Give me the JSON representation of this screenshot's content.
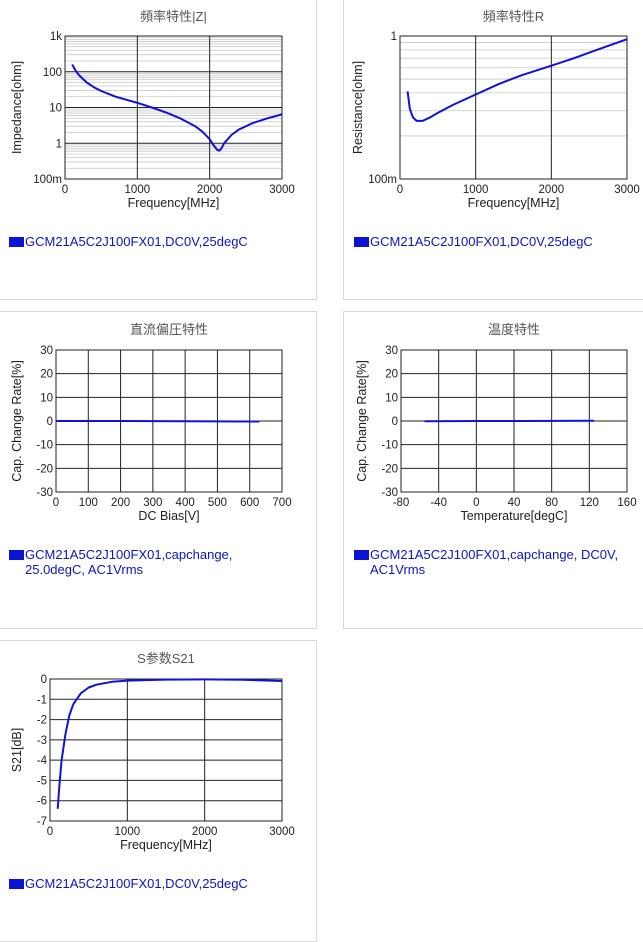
{
  "chart_data": [
    {
      "type": "line",
      "title": "頻率特性|Z|",
      "xlabel": "Frequency[MHz]",
      "ylabel": "Impedance[ohm]",
      "xlim": [
        0,
        3000
      ],
      "ylim": [
        0.1,
        1000
      ],
      "yscale": "log",
      "xticks": [
        0,
        1000,
        2000,
        3000
      ],
      "xtick_labels": [
        "0",
        "1000",
        "2000",
        "3000"
      ],
      "yticks": [
        0.1,
        1,
        10,
        100,
        1000
      ],
      "ytick_labels": [
        "100m",
        "1",
        "10",
        "100",
        "1k"
      ],
      "grid": true,
      "minor_grid": true,
      "series": [
        {
          "name": "GCM21A5C2J100FX01,DC0V,25degC",
          "color": "#1010e0",
          "x": [
            100,
            150,
            200,
            300,
            400,
            500,
            700,
            1000,
            1200,
            1400,
            1600,
            1800,
            1900,
            2000,
            2050,
            2100,
            2130,
            2160,
            2200,
            2300,
            2400,
            2600,
            2800,
            3000
          ],
          "y": [
            160,
            105,
            78,
            50,
            37,
            29,
            20,
            13.5,
            10,
            7.2,
            4.9,
            3.0,
            2.1,
            1.3,
            0.9,
            0.67,
            0.62,
            0.7,
            1.0,
            1.7,
            2.4,
            3.7,
            5.0,
            6.4
          ]
        }
      ],
      "legend": "GCM21A5C2J100FX01,DC0V,25degC"
    },
    {
      "type": "line",
      "title": "頻率特性R",
      "xlabel": "Frequency[MHz]",
      "ylabel": "Resistance[ohm]",
      "xlim": [
        0,
        3000
      ],
      "ylim": [
        0.1,
        1
      ],
      "yscale": "log",
      "xticks": [
        0,
        1000,
        2000,
        3000
      ],
      "xtick_labels": [
        "0",
        "1000",
        "2000",
        "3000"
      ],
      "yticks": [
        0.1,
        1
      ],
      "ytick_labels": [
        "100m",
        "1"
      ],
      "grid": true,
      "minor_grid": true,
      "series": [
        {
          "name": "GCM21A5C2J100FX01,DC0V,25degC",
          "color": "#1010e0",
          "x": [
            100,
            130,
            170,
            220,
            300,
            400,
            500,
            700,
            1000,
            1300,
            1600,
            2000,
            2300,
            2600,
            3000
          ],
          "y": [
            0.41,
            0.31,
            0.27,
            0.255,
            0.255,
            0.27,
            0.29,
            0.33,
            0.39,
            0.46,
            0.53,
            0.62,
            0.7,
            0.8,
            0.95
          ]
        }
      ],
      "legend": "GCM21A5C2J100FX01,DC0V,25degC"
    },
    {
      "type": "line",
      "title": "直流偏圧特性",
      "xlabel": "DC Bias[V]",
      "ylabel": "Cap. Change Rate[%]",
      "xlim": [
        0,
        700
      ],
      "ylim": [
        -30,
        30
      ],
      "xticks": [
        0,
        100,
        200,
        300,
        400,
        500,
        600,
        700
      ],
      "xtick_labels": [
        "0",
        "100",
        "200",
        "300",
        "400",
        "500",
        "600",
        "700"
      ],
      "yticks": [
        -30,
        -20,
        -10,
        0,
        10,
        20,
        30
      ],
      "ytick_labels": [
        "-30",
        "-20",
        "-10",
        "0",
        "10",
        "20",
        "30"
      ],
      "grid": true,
      "series": [
        {
          "name": "GCM21A5C2J100FX01,capchange,\n25.0degC, AC1Vrms",
          "color": "#1010e0",
          "x": [
            0,
            100,
            200,
            300,
            400,
            500,
            600,
            630
          ],
          "y": [
            0,
            0,
            0,
            -0.05,
            -0.1,
            -0.15,
            -0.2,
            -0.2
          ]
        }
      ],
      "legend": "GCM21A5C2J100FX01,capchange,\n25.0degC, AC1Vrms"
    },
    {
      "type": "line",
      "title": "温度特性",
      "xlabel": "Temperature[degC]",
      "ylabel": "Cap. Change Rate[%]",
      "xlim": [
        -80,
        160
      ],
      "ylim": [
        -30,
        30
      ],
      "xticks": [
        -80,
        -40,
        0,
        40,
        80,
        120,
        160
      ],
      "xtick_labels": [
        "-80",
        "-40",
        "0",
        "40",
        "80",
        "120",
        "160"
      ],
      "yticks": [
        -30,
        -20,
        -10,
        0,
        10,
        20,
        30
      ],
      "ytick_labels": [
        "-30",
        "-20",
        "-10",
        "0",
        "10",
        "20",
        "30"
      ],
      "grid": true,
      "series": [
        {
          "name": "GCM21A5C2J100FX01,capchange, DC0V,\nAC1Vrms",
          "color": "#1010e0",
          "x": [
            -55,
            -25,
            0,
            25,
            50,
            85,
            125
          ],
          "y": [
            -0.1,
            -0.05,
            0,
            0,
            0,
            0.05,
            0.1
          ]
        }
      ],
      "legend": "GCM21A5C2J100FX01,capchange, DC0V,\nAC1Vrms"
    },
    {
      "type": "line",
      "title": "S参数S21",
      "xlabel": "Frequency[MHz]",
      "ylabel": "S21[dB]",
      "xlim": [
        0,
        3000
      ],
      "ylim": [
        -7,
        0
      ],
      "xticks": [
        0,
        1000,
        2000,
        3000
      ],
      "xtick_labels": [
        "0",
        "1000",
        "2000",
        "3000"
      ],
      "yticks": [
        -7,
        -6,
        -5,
        -4,
        -3,
        -2,
        -1,
        0
      ],
      "ytick_labels": [
        "-7",
        "-6",
        "-5",
        "-4",
        "-3",
        "-2",
        "-1",
        "0"
      ],
      "grid": true,
      "series": [
        {
          "name": "GCM21A5C2J100FX01,DC0V,25degC",
          "color": "#1010e0",
          "x": [
            100,
            120,
            150,
            200,
            250,
            300,
            400,
            500,
            600,
            800,
            1000,
            1500,
            2000,
            2500,
            3000
          ],
          "y": [
            -6.4,
            -5.3,
            -4.0,
            -2.7,
            -1.8,
            -1.25,
            -0.7,
            -0.42,
            -0.28,
            -0.14,
            -0.08,
            -0.03,
            -0.02,
            -0.04,
            -0.1
          ]
        }
      ],
      "legend": "GCM21A5C2J100FX01,DC0V,25degC"
    }
  ]
}
